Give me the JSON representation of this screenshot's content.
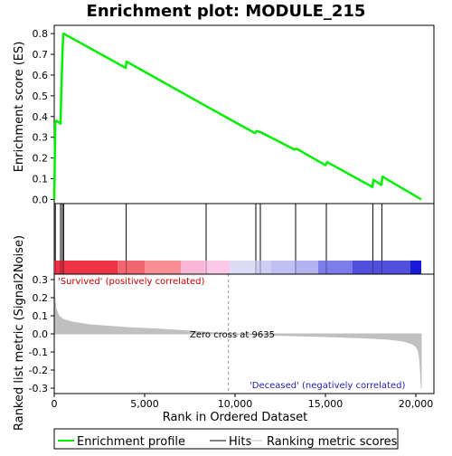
{
  "chart_data": {
    "type": "line",
    "title": "Enrichment plot: MODULE_215",
    "x_axis": {
      "label": "Rank in Ordered Dataset",
      "range": [
        0,
        21000
      ],
      "ticks": [
        0,
        5000,
        10000,
        15000,
        20000
      ],
      "tick_labels": [
        "0",
        "5,000",
        "10,000",
        "15,000",
        "20,000"
      ]
    },
    "es_panel": {
      "ylabel": "Enrichment score (ES)",
      "ylim": [
        -0.02,
        0.84
      ],
      "yticks": [
        0.0,
        0.1,
        0.2,
        0.3,
        0.4,
        0.5,
        0.6,
        0.7,
        0.8
      ],
      "ytick_labels": [
        "0.0",
        "0.1",
        "0.2",
        "0.3",
        "0.4",
        "0.5",
        "0.6",
        "0.7",
        "0.8"
      ],
      "series": [
        {
          "name": "Enrichment profile",
          "color": "#00ee00",
          "x": [
            0,
            60,
            120,
            350,
            380,
            420,
            450,
            500,
            520,
            3950,
            4000,
            8400,
            11100,
            11200,
            11400,
            13300,
            13400,
            15000,
            15100,
            17600,
            17650,
            18100,
            18150,
            20300
          ],
          "y": [
            0.0,
            0.37,
            0.38,
            0.365,
            0.49,
            0.6,
            0.7,
            0.8,
            0.8,
            0.635,
            0.665,
            0.45,
            0.32,
            0.33,
            0.325,
            0.24,
            0.245,
            0.165,
            0.18,
            0.06,
            0.095,
            0.07,
            0.11,
            0.0
          ]
        }
      ]
    },
    "hits": {
      "name": "Hits",
      "color": "#000000",
      "positions": [
        60,
        350,
        450,
        520,
        3980,
        8400,
        11150,
        11400,
        13350,
        15050,
        17620,
        18120
      ]
    },
    "color_bar": {
      "segments": [
        {
          "from": 0,
          "to": 3500,
          "color": "#ee3344"
        },
        {
          "from": 3500,
          "to": 5000,
          "color": "#f2666f"
        },
        {
          "from": 5000,
          "to": 7000,
          "color": "#f78f92"
        },
        {
          "from": 7000,
          "to": 8300,
          "color": "#f9b6d6"
        },
        {
          "from": 8300,
          "to": 9700,
          "color": "#fbc8e8"
        },
        {
          "from": 9700,
          "to": 11200,
          "color": "#dcdcf6"
        },
        {
          "from": 11200,
          "to": 12000,
          "color": "#cfcff4"
        },
        {
          "from": 12000,
          "to": 13300,
          "color": "#c0c0f2"
        },
        {
          "from": 13300,
          "to": 14600,
          "color": "#b2b2f0"
        },
        {
          "from": 14600,
          "to": 16500,
          "color": "#7c7cea"
        },
        {
          "from": 16500,
          "to": 19700,
          "color": "#5050dd"
        },
        {
          "from": 19700,
          "to": 20300,
          "color": "#1a1ad6"
        }
      ]
    },
    "metric_panel": {
      "ylabel": "Ranked list metric (Signal2Noise)",
      "ylim": [
        -0.33,
        0.33
      ],
      "yticks": [
        -0.3,
        -0.2,
        -0.1,
        0.0,
        0.1,
        0.2,
        0.3
      ],
      "ytick_labels": [
        "-0.3",
        "-0.2",
        "-0.1",
        "0.0",
        "0.1",
        "0.2",
        "0.3"
      ],
      "series": [
        {
          "name": "Ranking metric scores",
          "color": "#c0c0c0",
          "x": [
            0,
            30,
            100,
            250,
            500,
            1000,
            2000,
            4000,
            6000,
            8000,
            9635,
            11000,
            13000,
            15000,
            17000,
            18500,
            19300,
            19800,
            20000,
            20100,
            20150,
            20200,
            20250,
            20300
          ],
          "y": [
            0.3,
            0.2,
            0.14,
            0.1,
            0.08,
            0.065,
            0.05,
            0.035,
            0.025,
            0.012,
            0.0,
            -0.005,
            -0.01,
            -0.015,
            -0.022,
            -0.03,
            -0.04,
            -0.055,
            -0.07,
            -0.085,
            -0.1,
            -0.13,
            -0.2,
            -0.3
          ]
        }
      ],
      "annotations": {
        "positive": "'Survived' (positively correlated)",
        "negative": "'Deceased' (negatively correlated)",
        "zero_cross": "Zero cross at 9635"
      },
      "zero_cross_x": 9635
    },
    "legend": {
      "placement": "bottom",
      "items": [
        {
          "label": "Enrichment profile",
          "color": "#00ee00"
        },
        {
          "label": "Hits",
          "color": "#000000"
        },
        {
          "label": "Ranking metric scores",
          "color": "#c0c0c0"
        }
      ]
    }
  }
}
